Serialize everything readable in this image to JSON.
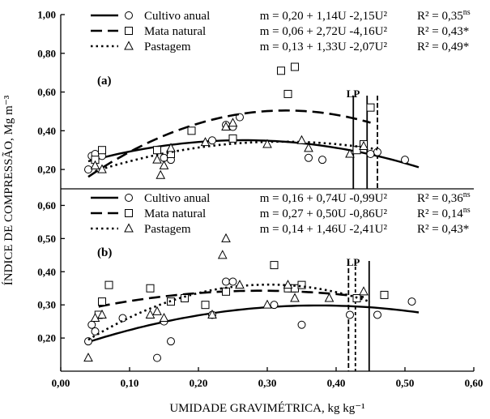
{
  "chart_data": {
    "type": "scatter",
    "xlabel": "UMIDADE GRAVIMÉTRICA, kg kg⁻¹",
    "ylabel": "ÍNDICE DE COMPRESSÃO, Mg m⁻³",
    "xlim": [
      0.0,
      0.6
    ],
    "xticks": [
      "0,00",
      "0,10",
      "0,20",
      "0,30",
      "0,40",
      "0,50",
      "0,60"
    ],
    "panels": [
      {
        "label": "(a)",
        "ylim": [
          0.1,
          1.0
        ],
        "yticks": [
          "0,20",
          "0,40",
          "0,60",
          "0,80",
          "1,00"
        ],
        "lp_label": "LP",
        "lp_lines": [
          0.425,
          0.445,
          0.46
        ],
        "series": [
          {
            "name": "Cultivo anual",
            "equation": "m = 0,20 + 1,14U -2,15U²",
            "r2": "R² = 0,35ns",
            "line": "solid",
            "marker": "circle",
            "coef": [
              0.2,
              1.14,
              -2.15
            ],
            "fit_range": [
              0.04,
              0.52
            ],
            "points": [
              [
                0.04,
                0.2
              ],
              [
                0.045,
                0.27
              ],
              [
                0.05,
                0.28
              ],
              [
                0.06,
                0.27
              ],
              [
                0.15,
                0.26
              ],
              [
                0.16,
                0.25
              ],
              [
                0.22,
                0.35
              ],
              [
                0.24,
                0.43
              ],
              [
                0.25,
                0.42
              ],
              [
                0.26,
                0.47
              ],
              [
                0.36,
                0.26
              ],
              [
                0.38,
                0.25
              ],
              [
                0.45,
                0.28
              ],
              [
                0.46,
                0.29
              ],
              [
                0.5,
                0.25
              ]
            ]
          },
          {
            "name": "Mata natural",
            "equation": "m = 0,06 + 2,72U -4,16U²",
            "r2": "R² = 0,43*",
            "line": "dashed",
            "marker": "square",
            "coef": [
              0.06,
              2.72,
              -4.16
            ],
            "fit_range": [
              0.04,
              0.45
            ],
            "points": [
              [
                0.05,
                0.25
              ],
              [
                0.06,
                0.3
              ],
              [
                0.14,
                0.3
              ],
              [
                0.16,
                0.28
              ],
              [
                0.19,
                0.4
              ],
              [
                0.25,
                0.36
              ],
              [
                0.32,
                0.71
              ],
              [
                0.33,
                0.59
              ],
              [
                0.34,
                0.73
              ],
              [
                0.43,
                0.3
              ],
              [
                0.44,
                0.33
              ],
              [
                0.45,
                0.52
              ]
            ]
          },
          {
            "name": "Pastagem",
            "equation": "m = 0,13 + 1,33U -2,07U²",
            "r2": "R² = 0,49*",
            "line": "dotted",
            "marker": "triangle",
            "coef": [
              0.13,
              1.33,
              -2.07
            ],
            "fit_range": [
              0.05,
              0.46
            ],
            "points": [
              [
                0.05,
                0.22
              ],
              [
                0.06,
                0.2
              ],
              [
                0.14,
                0.25
              ],
              [
                0.145,
                0.17
              ],
              [
                0.15,
                0.22
              ],
              [
                0.16,
                0.31
              ],
              [
                0.21,
                0.34
              ],
              [
                0.24,
                0.42
              ],
              [
                0.25,
                0.44
              ],
              [
                0.3,
                0.33
              ],
              [
                0.35,
                0.35
              ],
              [
                0.36,
                0.31
              ],
              [
                0.42,
                0.28
              ],
              [
                0.44,
                0.32
              ]
            ]
          }
        ]
      },
      {
        "label": "(b)",
        "ylim": [
          0.1,
          0.65
        ],
        "yticks": [
          "0,20",
          "0,30",
          "0,40",
          "0,50",
          "0,60"
        ],
        "lp_label": "LP",
        "lp_lines": [
          0.418,
          0.428,
          0.448
        ],
        "series": [
          {
            "name": "Cultivo anual",
            "equation": "m = 0,16 + 0,74U -0,99U²",
            "r2": "R² = 0,36ns",
            "line": "solid",
            "marker": "circle",
            "coef": [
              0.16,
              0.74,
              -0.99
            ],
            "fit_range": [
              0.04,
              0.52
            ],
            "points": [
              [
                0.04,
                0.19
              ],
              [
                0.045,
                0.24
              ],
              [
                0.05,
                0.22
              ],
              [
                0.09,
                0.26
              ],
              [
                0.14,
                0.14
              ],
              [
                0.15,
                0.25
              ],
              [
                0.16,
                0.19
              ],
              [
                0.22,
                0.27
              ],
              [
                0.24,
                0.37
              ],
              [
                0.25,
                0.37
              ],
              [
                0.31,
                0.3
              ],
              [
                0.35,
                0.24
              ],
              [
                0.42,
                0.27
              ],
              [
                0.46,
                0.27
              ],
              [
                0.51,
                0.31
              ]
            ]
          },
          {
            "name": "Mata natural",
            "equation": "m = 0,27 + 0,50U -0,86U²",
            "r2": "R² = 0,14ns",
            "line": "dashed",
            "marker": "square",
            "coef": [
              0.27,
              0.5,
              -0.86
            ],
            "fit_range": [
              0.055,
              0.44
            ],
            "points": [
              [
                0.055,
                0.27
              ],
              [
                0.06,
                0.31
              ],
              [
                0.07,
                0.36
              ],
              [
                0.13,
                0.35
              ],
              [
                0.16,
                0.31
              ],
              [
                0.18,
                0.32
              ],
              [
                0.21,
                0.3
              ],
              [
                0.24,
                0.34
              ],
              [
                0.31,
                0.42
              ],
              [
                0.33,
                0.35
              ],
              [
                0.34,
                0.35
              ],
              [
                0.35,
                0.36
              ],
              [
                0.43,
                0.32
              ],
              [
                0.47,
                0.33
              ]
            ]
          },
          {
            "name": "Pastagem",
            "equation": "m = 0,14 + 1,46U -2,41U²",
            "r2": "R² = 0,43*",
            "line": "dotted",
            "marker": "triangle",
            "coef": [
              0.14,
              1.46,
              -2.41
            ],
            "fit_range": [
              0.04,
              0.45
            ],
            "points": [
              [
                0.04,
                0.14
              ],
              [
                0.05,
                0.26
              ],
              [
                0.06,
                0.27
              ],
              [
                0.13,
                0.27
              ],
              [
                0.14,
                0.28
              ],
              [
                0.15,
                0.26
              ],
              [
                0.22,
                0.27
              ],
              [
                0.235,
                0.45
              ],
              [
                0.24,
                0.5
              ],
              [
                0.26,
                0.36
              ],
              [
                0.3,
                0.3
              ],
              [
                0.33,
                0.36
              ],
              [
                0.34,
                0.32
              ],
              [
                0.39,
                0.32
              ],
              [
                0.44,
                0.34
              ]
            ]
          }
        ]
      }
    ]
  }
}
